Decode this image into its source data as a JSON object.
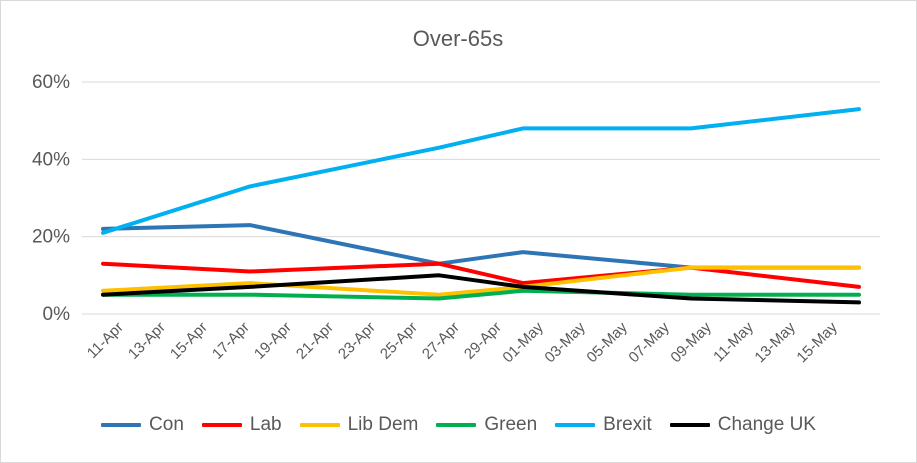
{
  "chart_data": {
    "type": "line",
    "title": "Over-65s",
    "xlabel": "",
    "ylabel": "",
    "ylim": [
      0,
      0.6
    ],
    "y_ticks": [
      "0%",
      "20%",
      "40%",
      "60%"
    ],
    "grid": true,
    "legend_position": "bottom",
    "x_tick_labels": [
      "11-Apr",
      "13-Apr",
      "15-Apr",
      "17-Apr",
      "19-Apr",
      "21-Apr",
      "23-Apr",
      "25-Apr",
      "27-Apr",
      "29-Apr",
      "01-May",
      "03-May",
      "05-May",
      "07-May",
      "09-May",
      "11-May",
      "13-May",
      "15-May"
    ],
    "x": [
      "2019-04-10",
      "2019-04-17",
      "2019-04-26",
      "2019-04-30",
      "2019-05-08",
      "2019-05-16"
    ],
    "series": [
      {
        "name": "Con",
        "color": "#2E75B6",
        "values": [
          0.22,
          0.23,
          0.13,
          0.16,
          0.12,
          0.12
        ]
      },
      {
        "name": "Lab",
        "color": "#FF0000",
        "values": [
          0.13,
          0.11,
          0.13,
          0.08,
          0.12,
          0.07
        ]
      },
      {
        "name": "Lib Dem",
        "color": "#FFC000",
        "values": [
          0.06,
          0.08,
          0.05,
          0.07,
          0.12,
          0.12
        ]
      },
      {
        "name": "Green",
        "color": "#00B050",
        "values": [
          0.05,
          0.05,
          0.04,
          0.06,
          0.05,
          0.05
        ]
      },
      {
        "name": "Brexit",
        "color": "#00B0F0",
        "values": [
          0.21,
          0.33,
          0.43,
          0.48,
          0.48,
          0.53
        ]
      },
      {
        "name": "Change UK",
        "color": "#000000",
        "values": [
          0.05,
          0.07,
          0.1,
          0.07,
          0.04,
          0.03
        ]
      }
    ]
  }
}
